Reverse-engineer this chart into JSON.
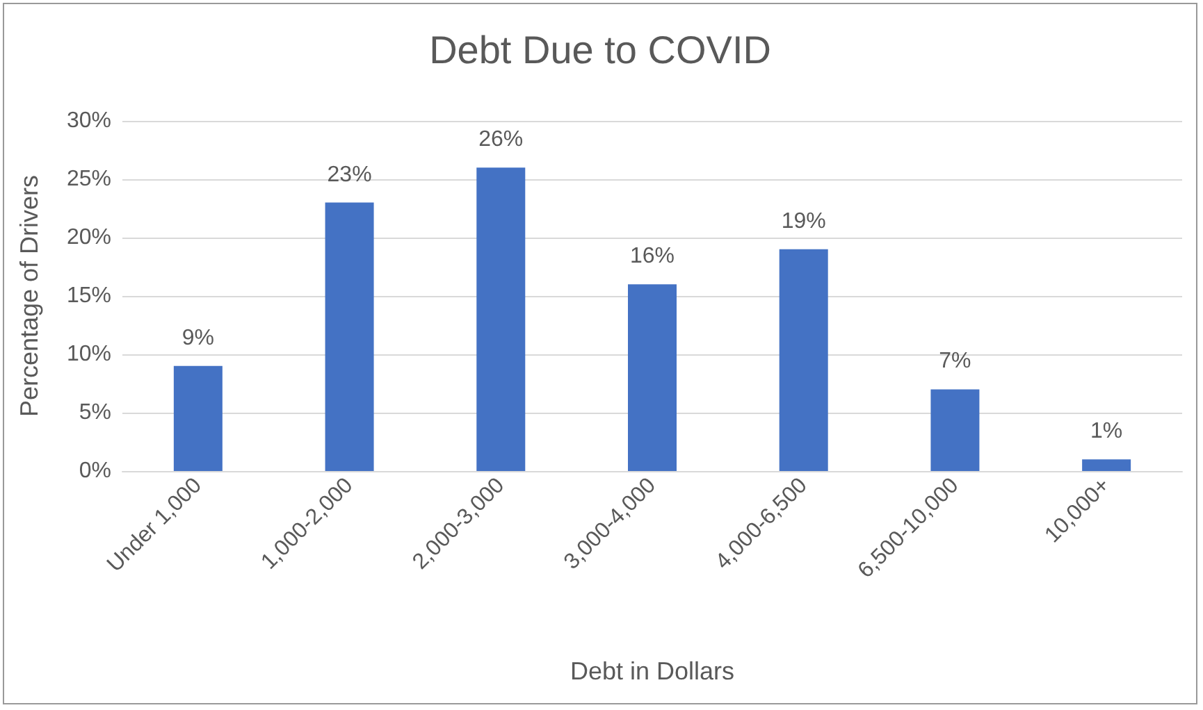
{
  "chart_data": {
    "type": "bar",
    "title": "Debt Due to COVID",
    "xlabel": "Debt in Dollars",
    "ylabel": "Percentage of Drivers",
    "categories": [
      "Under 1,000",
      "1,000-2,000",
      "2,000-3,000",
      "3,000-4,000",
      "4,000-6,500",
      "6,500-10,000",
      "10,000+"
    ],
    "values": [
      9,
      23,
      26,
      16,
      19,
      7,
      1
    ],
    "value_labels": [
      "9%",
      "23%",
      "26%",
      "16%",
      "19%",
      "7%",
      "1%"
    ],
    "color": "#4472c4",
    "ylim": [
      0,
      30
    ],
    "yticks": [
      {
        "value": 0,
        "label": "0%"
      },
      {
        "value": 5,
        "label": "5%"
      },
      {
        "value": 10,
        "label": "10%"
      },
      {
        "value": 15,
        "label": "15%"
      },
      {
        "value": 20,
        "label": "20%"
      },
      {
        "value": 25,
        "label": "25%"
      },
      {
        "value": 30,
        "label": "30%"
      }
    ],
    "grid": "y"
  }
}
